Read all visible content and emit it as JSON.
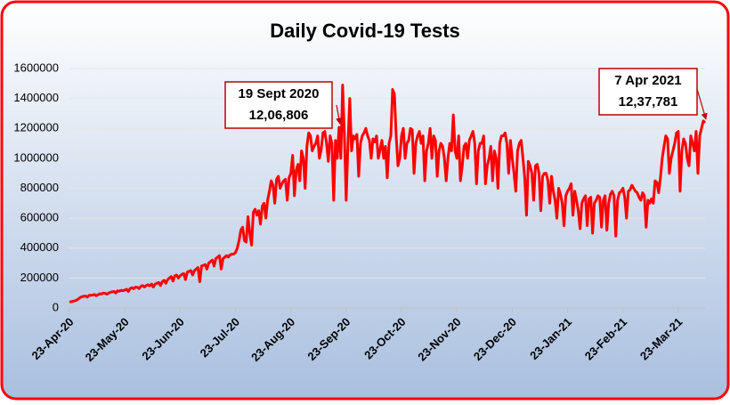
{
  "chart_data": {
    "type": "line",
    "title": "Daily Covid-19 Tests",
    "categories": [
      "23-Apr-20",
      null,
      null,
      null,
      null,
      null,
      null,
      null,
      null,
      null,
      null,
      null,
      null,
      null,
      null,
      null,
      null,
      null,
      null,
      null,
      null,
      null,
      null,
      null,
      null,
      null,
      null,
      null,
      null,
      null,
      null,
      "23-May-20",
      null,
      null,
      null,
      null,
      null,
      null,
      null,
      null,
      null,
      null,
      null,
      null,
      null,
      null,
      null,
      null,
      null,
      null,
      null,
      null,
      null,
      null,
      null,
      null,
      null,
      null,
      null,
      null,
      null,
      null,
      "23-Jun-20",
      null,
      null,
      null,
      null,
      null,
      null,
      null,
      null,
      null,
      null,
      null,
      null,
      null,
      null,
      null,
      null,
      null,
      null,
      null,
      null,
      null,
      null,
      null,
      null,
      null,
      null,
      null,
      null,
      null,
      null,
      "23-Jul-20",
      null,
      null,
      null,
      null,
      null,
      null,
      null,
      null,
      null,
      null,
      null,
      null,
      null,
      null,
      null,
      null,
      null,
      null,
      null,
      null,
      null,
      null,
      null,
      null,
      null,
      null,
      null,
      null,
      null,
      null,
      "23-Aug-20",
      null,
      null,
      null,
      null,
      null,
      null,
      null,
      null,
      null,
      null,
      null,
      null,
      null,
      null,
      null,
      null,
      null,
      null,
      null,
      null,
      null,
      null,
      null,
      null,
      null,
      null,
      null,
      null,
      null,
      null,
      "23-Sep-20",
      null,
      null,
      null,
      null,
      null,
      null,
      null,
      null,
      null,
      null,
      null,
      null,
      null,
      null,
      null,
      null,
      null,
      null,
      null,
      null,
      null,
      null,
      null,
      null,
      null,
      null,
      null,
      null,
      null,
      null,
      "23-Oct-20",
      null,
      null,
      null,
      null,
      null,
      null,
      null,
      null,
      null,
      null,
      null,
      null,
      null,
      null,
      null,
      null,
      null,
      null,
      null,
      null,
      null,
      null,
      null,
      null,
      null,
      null,
      null,
      null,
      null,
      null,
      "23-Nov-20",
      null,
      null,
      null,
      null,
      null,
      null,
      null,
      null,
      null,
      null,
      null,
      null,
      null,
      null,
      null,
      null,
      null,
      null,
      null,
      null,
      null,
      null,
      null,
      null,
      null,
      null,
      null,
      null,
      null,
      null,
      "23-Dec-20",
      null,
      null,
      null,
      null,
      null,
      null,
      null,
      null,
      null,
      null,
      null,
      null,
      null,
      null,
      null,
      null,
      null,
      null,
      null,
      null,
      null,
      null,
      null,
      null,
      null,
      null,
      null,
      null,
      null,
      null,
      "23-Jan-21",
      null,
      null,
      null,
      null,
      null,
      null,
      null,
      null,
      null,
      null,
      null,
      null,
      null,
      null,
      null,
      null,
      null,
      null,
      null,
      null,
      null,
      null,
      null,
      null,
      null,
      null,
      null,
      null,
      null,
      null,
      "23-Feb-21",
      null,
      null,
      null,
      null,
      null,
      null,
      null,
      null,
      null,
      null,
      null,
      null,
      null,
      null,
      null,
      null,
      null,
      null,
      null,
      null,
      null,
      null,
      null,
      null,
      null,
      null,
      null,
      null,
      null,
      null,
      "23-Mar-21",
      null,
      null,
      null,
      null,
      null,
      null,
      null,
      null,
      null,
      null,
      null,
      null,
      null,
      null,
      null
    ],
    "values": [
      40000,
      42000,
      45000,
      48000,
      52000,
      60000,
      70000,
      75000,
      78000,
      80000,
      72000,
      85000,
      85000,
      86000,
      90000,
      82000,
      88000,
      95000,
      93000,
      100000,
      98000,
      92000,
      100000,
      105000,
      108000,
      110000,
      100000,
      115000,
      112000,
      118000,
      115000,
      120000,
      125000,
      110000,
      130000,
      135000,
      128000,
      140000,
      138000,
      130000,
      145000,
      150000,
      140000,
      150000,
      155000,
      148000,
      160000,
      140000,
      160000,
      165000,
      170000,
      150000,
      175000,
      185000,
      165000,
      190000,
      200000,
      210000,
      180000,
      215000,
      220000,
      200000,
      215000,
      225000,
      230000,
      190000,
      240000,
      245000,
      250000,
      220000,
      250000,
      260000,
      270000,
      175000,
      280000,
      285000,
      290000,
      260000,
      300000,
      310000,
      320000,
      280000,
      330000,
      340000,
      350000,
      260000,
      330000,
      340000,
      350000,
      340000,
      355000,
      360000,
      360000,
      370000,
      400000,
      450000,
      520000,
      540000,
      450000,
      440000,
      610000,
      500000,
      420000,
      640000,
      660000,
      620000,
      650000,
      560000,
      680000,
      700000,
      600000,
      720000,
      780000,
      850000,
      820000,
      700000,
      860000,
      880000,
      800000,
      830000,
      850000,
      860000,
      720000,
      870000,
      900000,
      1020000,
      750000,
      920000,
      960000,
      850000,
      1050000,
      1000000,
      800000,
      1080000,
      1170000,
      1150000,
      1050000,
      1080000,
      1100000,
      1150000,
      1000000,
      1060000,
      1170000,
      1180000,
      1100000,
      980000,
      1150000,
      1100000,
      720000,
      1120000,
      1000000,
      1206806,
      1000000,
      1490000,
      1150000,
      720000,
      1100000,
      1400000,
      1050000,
      1150000,
      1130000,
      1160000,
      880000,
      1100000,
      1150000,
      1170000,
      1200000,
      1150000,
      1120000,
      1000000,
      1130000,
      1110000,
      1150000,
      1000000,
      1060000,
      1120000,
      1000000,
      1080000,
      870000,
      1100000,
      1150000,
      1460000,
      1430000,
      1150000,
      950000,
      1000000,
      1150000,
      1200000,
      1000000,
      1100000,
      1120000,
      1200000,
      1190000,
      900000,
      1100000,
      1150000,
      1180000,
      1100000,
      1150000,
      850000,
      1050000,
      1100000,
      1200000,
      1000000,
      1150000,
      1120000,
      880000,
      1050000,
      1100000,
      1080000,
      1000000,
      850000,
      1000000,
      1100000,
      1050000,
      1290000,
      1050000,
      1000000,
      1150000,
      850000,
      950000,
      1080000,
      1100000,
      1000000,
      1120000,
      1150000,
      1180000,
      1100000,
      830000,
      1050000,
      1100000,
      1100000,
      1150000,
      830000,
      950000,
      1000000,
      1080000,
      850000,
      1050000,
      1000000,
      800000,
      1100000,
      1150000,
      1150000,
      1170000,
      1100000,
      900000,
      1120000,
      1000000,
      900000,
      780000,
      1050000,
      1100000,
      1120000,
      1000000,
      870000,
      620000,
      980000,
      950000,
      900000,
      720000,
      950000,
      960000,
      900000,
      650000,
      880000,
      900000,
      900000,
      850000,
      700000,
      880000,
      780000,
      720000,
      600000,
      800000,
      760000,
      700000,
      550000,
      750000,
      780000,
      800000,
      830000,
      620000,
      780000,
      720000,
      650000,
      530000,
      700000,
      730000,
      750000,
      550000,
      730000,
      740000,
      500000,
      700000,
      720000,
      750000,
      740000,
      540000,
      720000,
      750000,
      520000,
      700000,
      760000,
      780000,
      750000,
      480000,
      720000,
      770000,
      780000,
      800000,
      740000,
      600000,
      780000,
      790000,
      820000,
      800000,
      780000,
      770000,
      740000,
      720000,
      770000,
      750000,
      540000,
      720000,
      700000,
      730000,
      700000,
      850000,
      840000,
      770000,
      870000,
      1000000,
      1080000,
      1150000,
      1130000,
      900000,
      1000000,
      1050000,
      1100000,
      1170000,
      1180000,
      780000,
      1050000,
      1130000,
      1100000,
      1000000,
      950000,
      1150000,
      1100000,
      1050000,
      1180000,
      900000,
      1150000,
      1200000,
      1250000,
      1237781
    ],
    "color": "#ff0000",
    "ylim": [
      0,
      1600000
    ],
    "yticks": [
      0,
      200000,
      400000,
      600000,
      800000,
      1000000,
      1200000,
      1400000,
      1600000
    ],
    "grid": true,
    "annotations": [
      {
        "lines": [
          "19 Sept 2020",
          "12,06,806"
        ]
      },
      {
        "lines": [
          "7 Apr 2021",
          "12,37,781"
        ]
      }
    ]
  }
}
